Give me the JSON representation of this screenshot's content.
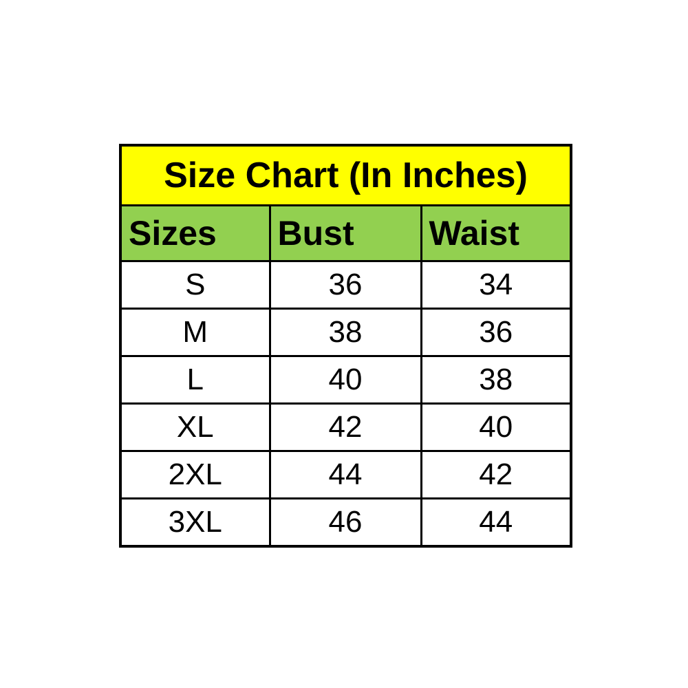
{
  "chart_data": {
    "type": "table",
    "title": "Size Chart (In Inches)",
    "columns": [
      "Sizes",
      "Bust",
      "Waist"
    ],
    "rows": [
      {
        "size": "S",
        "bust": "36",
        "waist": "34"
      },
      {
        "size": "M",
        "bust": "38",
        "waist": "36"
      },
      {
        "size": "L",
        "bust": "40",
        "waist": "38"
      },
      {
        "size": "XL",
        "bust": "42",
        "waist": "40"
      },
      {
        "size": "2XL",
        "bust": "44",
        "waist": "42"
      },
      {
        "size": "3XL",
        "bust": "46",
        "waist": "44"
      }
    ],
    "colors": {
      "title_background": "#FFFF00",
      "header_background": "#92D050",
      "cell_background": "#FFFFFF",
      "border": "#000000",
      "text": "#000000",
      "page_background": "#FFFFFF"
    },
    "layout_hints": {
      "grid": "all-borders",
      "title_span": 3,
      "header_alignment": "left",
      "data_alignment": "center"
    }
  }
}
